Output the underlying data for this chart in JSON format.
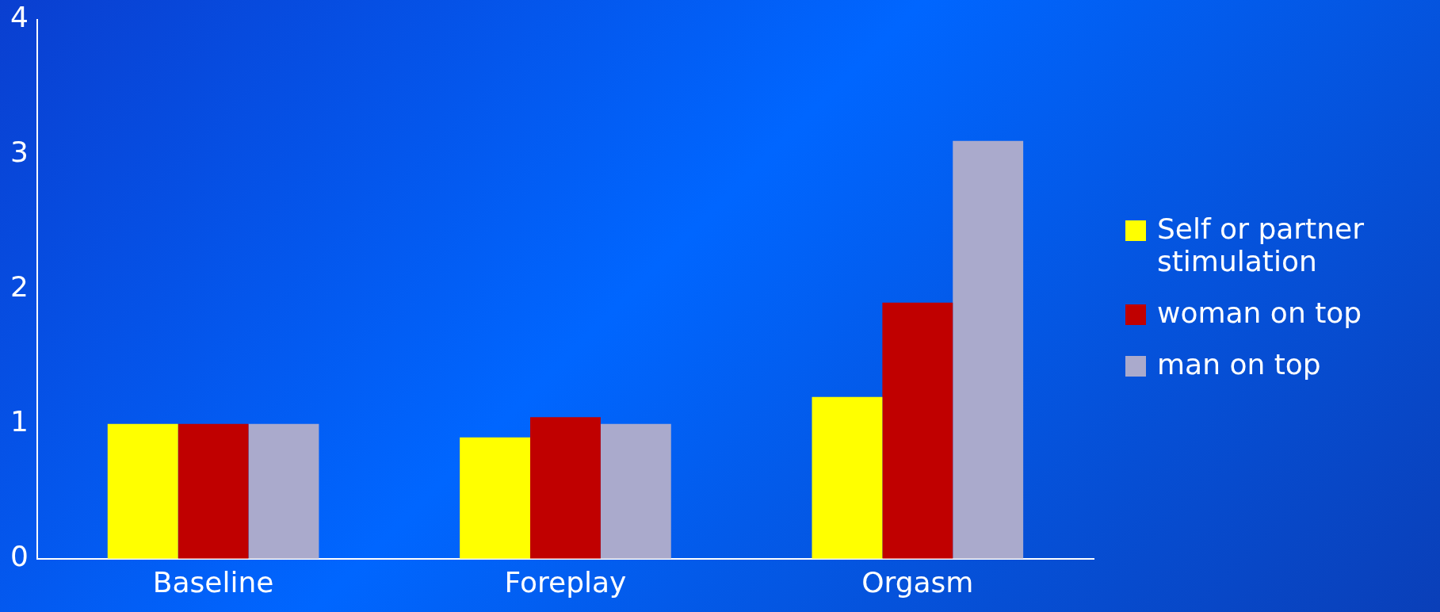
{
  "chart_data": {
    "type": "bar",
    "categories": [
      "Baseline",
      "Foreplay",
      "Orgasm"
    ],
    "series": [
      {
        "name": "Self or partner stimulation",
        "color": "#ffff00",
        "values": [
          1.0,
          0.9,
          1.2
        ]
      },
      {
        "name": "woman on top",
        "color": "#c00000",
        "values": [
          1.0,
          1.05,
          1.9
        ]
      },
      {
        "name": "man on top",
        "color": "#aaaacc",
        "values": [
          1.0,
          1.0,
          3.1
        ]
      }
    ],
    "ylim": [
      0,
      4
    ],
    "yticks": [
      0,
      1,
      2,
      3,
      4
    ],
    "grid": false,
    "legend": "right"
  }
}
